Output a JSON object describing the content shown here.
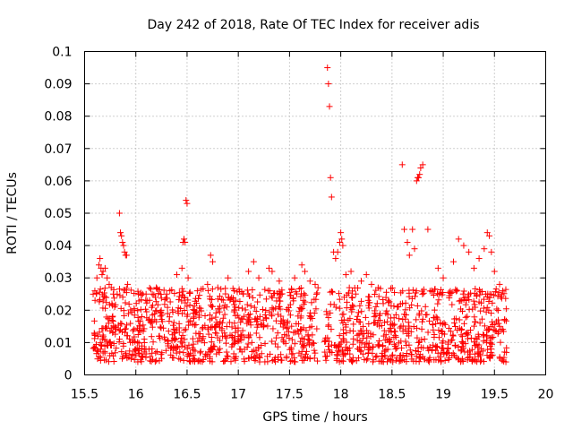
{
  "chart_data": {
    "type": "scatter",
    "title": "Day 242 of 2018, Rate Of TEC Index for receiver adis",
    "xlabel": "GPS time / hours",
    "ylabel": "ROTI / TECUs",
    "xlim": [
      15.5,
      20
    ],
    "ylim": [
      0,
      0.1
    ],
    "x_ticks": [
      "15.5",
      "16",
      "16.5",
      "17",
      "17.5",
      "18",
      "18.5",
      "19",
      "19.5",
      "20"
    ],
    "x_tick_values": [
      15.5,
      16,
      16.5,
      17,
      17.5,
      18,
      18.5,
      19,
      19.5,
      20
    ],
    "y_ticks": [
      "0",
      "0.01",
      "0.02",
      "0.03",
      "0.04",
      "0.05",
      "0.06",
      "0.07",
      "0.08",
      "0.09",
      "0.1"
    ],
    "y_tick_values": [
      0,
      0.01,
      0.02,
      0.03,
      0.04,
      0.05,
      0.06,
      0.07,
      0.08,
      0.09,
      0.1
    ],
    "grid": true,
    "marker": "+",
    "color": "#ff0000",
    "series": [
      {
        "name": "ROTI",
        "x": [
          15.6,
          15.62,
          15.64,
          15.65,
          15.66,
          15.67,
          15.68,
          15.7,
          15.72,
          15.74,
          15.76,
          15.78,
          15.84,
          15.85,
          15.86,
          15.87,
          15.88,
          15.89,
          15.9,
          15.91,
          15.92,
          16.1,
          16.2,
          16.3,
          16.4,
          16.45,
          16.46,
          16.47,
          16.48,
          16.49,
          16.5,
          16.51,
          16.6,
          16.7,
          16.73,
          16.75,
          16.8,
          16.9,
          17.1,
          17.15,
          17.2,
          17.3,
          17.33,
          17.4,
          17.55,
          17.62,
          17.65,
          17.7,
          17.75,
          17.87,
          17.88,
          17.89,
          17.9,
          17.91,
          17.93,
          17.95,
          17.97,
          17.99,
          18.0,
          18.01,
          18.02,
          18.05,
          18.1,
          18.2,
          18.25,
          18.3,
          18.6,
          18.62,
          18.65,
          18.67,
          18.7,
          18.72,
          18.74,
          18.75,
          18.76,
          18.77,
          18.78,
          18.8,
          18.85,
          18.95,
          19.0,
          19.1,
          19.15,
          19.2,
          19.25,
          19.3,
          19.35,
          19.4,
          19.43,
          19.45,
          19.47,
          19.5,
          19.55,
          19.58
        ],
        "y": [
          0.026,
          0.03,
          0.034,
          0.036,
          0.033,
          0.031,
          0.032,
          0.033,
          0.03,
          0.028,
          0.027,
          0.025,
          0.05,
          0.044,
          0.043,
          0.041,
          0.04,
          0.038,
          0.037,
          0.037,
          0.028,
          0.025,
          0.027,
          0.025,
          0.031,
          0.033,
          0.041,
          0.042,
          0.041,
          0.054,
          0.053,
          0.03,
          0.026,
          0.028,
          0.037,
          0.035,
          0.027,
          0.03,
          0.032,
          0.035,
          0.03,
          0.033,
          0.032,
          0.029,
          0.03,
          0.034,
          0.032,
          0.029,
          0.028,
          0.095,
          0.09,
          0.083,
          0.061,
          0.055,
          0.038,
          0.036,
          0.038,
          0.041,
          0.044,
          0.042,
          0.04,
          0.031,
          0.032,
          0.029,
          0.031,
          0.028,
          0.065,
          0.045,
          0.041,
          0.037,
          0.045,
          0.039,
          0.06,
          0.061,
          0.061,
          0.062,
          0.064,
          0.065,
          0.045,
          0.033,
          0.03,
          0.035,
          0.042,
          0.04,
          0.038,
          0.033,
          0.036,
          0.039,
          0.044,
          0.043,
          0.038,
          0.032,
          0.028,
          0.026
        ]
      }
    ],
    "generated_cloud": {
      "x_range": [
        15.58,
        19.62
      ],
      "gap": [
        17.78,
        17.84
      ],
      "y_range": [
        0.004,
        0.027
      ],
      "count": 1500
    }
  }
}
